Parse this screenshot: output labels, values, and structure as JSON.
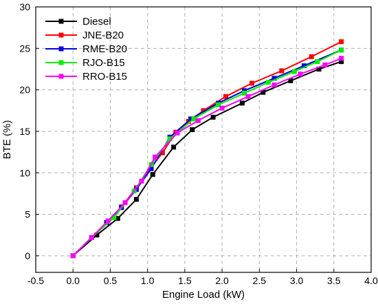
{
  "chart_data": {
    "type": "line",
    "xlabel": "Engine Load (kW)",
    "ylabel": "BTE (%)",
    "xlim": [
      -0.5,
      4.0
    ],
    "ylim": [
      -2,
      30
    ],
    "xticks": [
      "-0.5",
      "0.0",
      "0.5",
      "1.0",
      "1.5",
      "2.0",
      "2.5",
      "3.0",
      "3.5",
      "4.0"
    ],
    "yticks": [
      "0",
      "5",
      "10",
      "15",
      "20",
      "25",
      "30"
    ],
    "grid": "dashed",
    "legend_position": "top-left",
    "series": [
      {
        "name": "Diesel",
        "color": "#000000",
        "x": [
          0.0,
          0.32,
          0.6,
          0.85,
          1.07,
          1.35,
          1.6,
          1.88,
          2.27,
          2.55,
          2.92,
          3.3,
          3.6
        ],
        "y": [
          0.0,
          2.5,
          4.5,
          6.8,
          9.8,
          13.1,
          15.2,
          16.7,
          18.4,
          19.7,
          21.1,
          22.5,
          23.4
        ]
      },
      {
        "name": "JNE-B20",
        "color": "#ff0000",
        "x": [
          0.0,
          0.25,
          0.45,
          0.65,
          0.85,
          1.05,
          1.2,
          1.38,
          1.55,
          1.75,
          2.05,
          2.4,
          2.8,
          3.2,
          3.6
        ],
        "y": [
          0.0,
          2.2,
          4.0,
          5.9,
          8.2,
          10.7,
          12.4,
          14.9,
          16.2,
          17.5,
          19.2,
          20.8,
          22.3,
          24.0,
          25.8
        ]
      },
      {
        "name": "RME-B20",
        "color": "#0000dd",
        "x": [
          0.0,
          0.25,
          0.45,
          0.65,
          0.85,
          1.05,
          1.3,
          1.58,
          1.95,
          2.3,
          2.7,
          3.1,
          3.6
        ],
        "y": [
          0.0,
          2.2,
          4.0,
          5.8,
          8.0,
          10.5,
          14.3,
          16.5,
          18.4,
          19.9,
          21.4,
          22.9,
          24.8
        ]
      },
      {
        "name": "RJO-B15",
        "color": "#00ee00",
        "x": [
          0.0,
          0.25,
          0.55,
          0.82,
          1.05,
          1.3,
          1.62,
          1.95,
          2.3,
          2.62,
          2.97,
          3.28,
          3.6
        ],
        "y": [
          0.0,
          2.2,
          4.6,
          7.8,
          11.0,
          14.1,
          16.5,
          18.2,
          19.6,
          20.9,
          22.2,
          23.4,
          24.8
        ]
      },
      {
        "name": "RRO-B15",
        "color": "#ff00ff",
        "x": [
          0.0,
          0.25,
          0.47,
          0.7,
          0.92,
          1.1,
          1.4,
          1.68,
          2.0,
          2.35,
          2.7,
          3.05,
          3.38,
          3.6
        ],
        "y": [
          0.0,
          2.2,
          4.2,
          6.4,
          9.0,
          11.9,
          14.8,
          16.3,
          17.8,
          19.2,
          20.6,
          21.9,
          23.0,
          23.8
        ]
      }
    ]
  }
}
